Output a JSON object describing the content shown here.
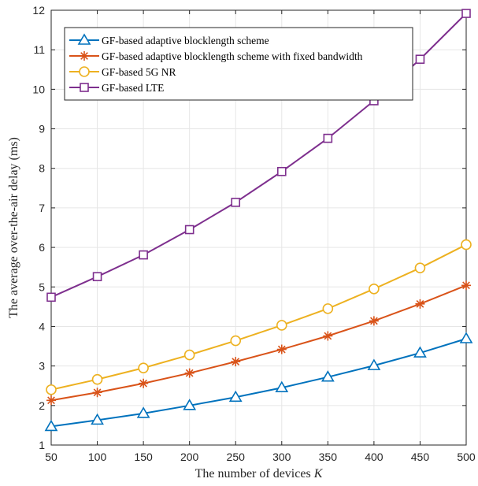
{
  "chart_data": {
    "type": "line",
    "xlabel": "The number of devices",
    "xlabel_var": "K",
    "ylabel": "The average over-the-air delay (ms)",
    "xlim": [
      50,
      500
    ],
    "ylim": [
      1,
      12
    ],
    "xticks": [
      50,
      100,
      150,
      200,
      250,
      300,
      350,
      400,
      450,
      500
    ],
    "yticks": [
      1,
      2,
      3,
      4,
      5,
      6,
      7,
      8,
      9,
      10,
      11,
      12
    ],
    "grid": true,
    "legend_position": "top-left",
    "x": [
      50,
      100,
      150,
      200,
      250,
      300,
      350,
      400,
      450,
      500
    ],
    "series": [
      {
        "name": "GF-based adaptive blocklength scheme",
        "marker": "triangle",
        "color": "#0072BD",
        "values": [
          1.47,
          1.63,
          1.8,
          2.0,
          2.21,
          2.45,
          2.72,
          3.01,
          3.33,
          3.69
        ]
      },
      {
        "name": "GF-based adaptive blocklength scheme with fixed bandwidth",
        "marker": "asterisk",
        "color": "#D95319",
        "values": [
          2.13,
          2.33,
          2.56,
          2.82,
          3.11,
          3.42,
          3.76,
          4.14,
          4.57,
          5.04
        ]
      },
      {
        "name": "GF-based 5G NR",
        "marker": "circle",
        "color": "#EDB120",
        "values": [
          2.4,
          2.66,
          2.95,
          3.28,
          3.64,
          4.03,
          4.45,
          4.95,
          5.48,
          6.07
        ]
      },
      {
        "name": "GF-based LTE",
        "marker": "square",
        "color": "#7E2F8E",
        "values": [
          4.74,
          5.26,
          5.81,
          6.45,
          7.14,
          7.92,
          8.76,
          9.71,
          10.76,
          11.92
        ]
      }
    ]
  }
}
